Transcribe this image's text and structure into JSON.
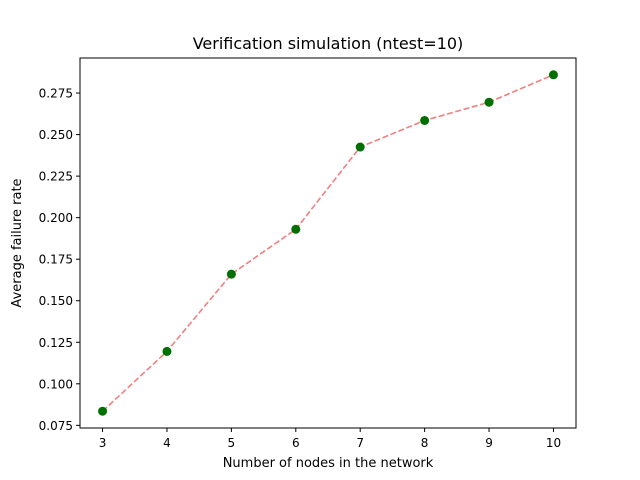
{
  "chart_data": {
    "type": "line",
    "title": "Verification simulation (ntest=10)",
    "xlabel": "Number of nodes in the network",
    "ylabel": "Average failure rate",
    "x": [
      3,
      4,
      5,
      6,
      7,
      8,
      9,
      10
    ],
    "series": [
      {
        "name": "Average failure rate",
        "values": [
          0.0835,
          0.1195,
          0.166,
          0.193,
          0.2425,
          0.2585,
          0.2695,
          0.286
        ],
        "line_color": "#f08080",
        "line_style": "dashed",
        "marker_color": "#007000",
        "marker": "circle"
      }
    ],
    "xlim": [
      2.65,
      10.35
    ],
    "ylim": [
      0.0734,
      0.2961
    ],
    "xticks": [
      "3",
      "4",
      "5",
      "6",
      "7",
      "8",
      "9",
      "10"
    ],
    "yticks": [
      0.075,
      0.1,
      0.125,
      0.15,
      0.175,
      0.2,
      0.225,
      0.25,
      0.275
    ],
    "ytick_labels": [
      "0.075",
      "0.100",
      "0.125",
      "0.150",
      "0.175",
      "0.200",
      "0.225",
      "0.250",
      "0.275"
    ],
    "grid": false,
    "legend": "none"
  }
}
